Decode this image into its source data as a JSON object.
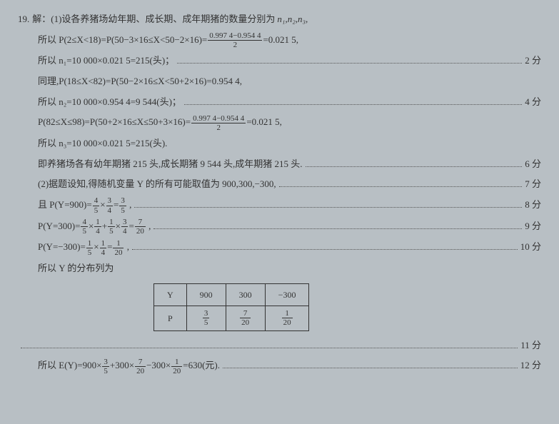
{
  "question_number": "19.",
  "intro": "解：(1)设各养猪场幼年期、成长期、成年期猪的数量分别为",
  "intro_vars": "n₁,n₂,n₃,",
  "lines": [
    {
      "text_prefix": "所以 P(2≤X<18)=P(50−3×16≤X<50−2×16)=",
      "frac_num": "0.997 4−0.954 4",
      "frac_den": "2",
      "text_suffix": "=0.021 5,",
      "score": ""
    },
    {
      "text": "所以 n₁=10 000×0.021 5=215(头)；",
      "score": "2 分"
    },
    {
      "text": "同理,P(18≤X<82)=P(50−2×16≤X<50+2×16)=0.954 4,",
      "score": ""
    },
    {
      "text": "所以 n₂=10 000×0.954 4=9 544(头)；",
      "score": "4 分"
    },
    {
      "text_prefix": "P(82≤X≤98)=P(50+2×16≤X≤50+3×16)=",
      "frac_num": "0.997 4−0.954 4",
      "frac_den": "2",
      "text_suffix": "=0.021 5,",
      "score": ""
    },
    {
      "text": "所以 n₃=10 000×0.021 5=215(头).",
      "score": ""
    },
    {
      "text": "即养猪场各有幼年期猪 215 头,成长期猪 9 544 头,成年期猪 215 头.",
      "score": "6 分"
    },
    {
      "text": "(2)据题设知,得随机变量 Y 的所有可能取值为 900,300,−300,",
      "score": "7 分"
    }
  ],
  "prob_lines": [
    {
      "label": "且 P(Y=900)=",
      "parts": [
        [
          "4",
          "5"
        ],
        "×",
        [
          "3",
          "4"
        ],
        "=",
        [
          "3",
          "5"
        ]
      ],
      "tail": " ,",
      "score": "8 分"
    },
    {
      "label": "P(Y=300)=",
      "parts": [
        [
          "4",
          "5"
        ],
        "×",
        [
          "1",
          "4"
        ],
        "+",
        [
          "1",
          "5"
        ],
        "×",
        [
          "3",
          "4"
        ],
        "=",
        [
          "7",
          "20"
        ]
      ],
      "tail": " ,",
      "score": "9 分"
    },
    {
      "label": "P(Y=−300)=",
      "parts": [
        [
          "1",
          "5"
        ],
        "×",
        [
          "1",
          "4"
        ],
        "=",
        [
          "1",
          "20"
        ]
      ],
      "tail": " ,",
      "score": "10 分"
    }
  ],
  "dist_label": "所以 Y 的分布列为",
  "table": {
    "header": [
      "Y",
      "900",
      "300",
      "−300"
    ],
    "row_label": "P",
    "row_fracs": [
      [
        "3",
        "5"
      ],
      [
        "7",
        "20"
      ],
      [
        "1",
        "20"
      ]
    ]
  },
  "table_score": "11 分",
  "expect": {
    "prefix": "所以 E(Y)=900×",
    "parts": [
      [
        "3",
        "5"
      ],
      "+300×",
      [
        "7",
        "20"
      ],
      "−300×",
      [
        "1",
        "20"
      ]
    ],
    "suffix": "=630(元).",
    "score": "12 分"
  }
}
